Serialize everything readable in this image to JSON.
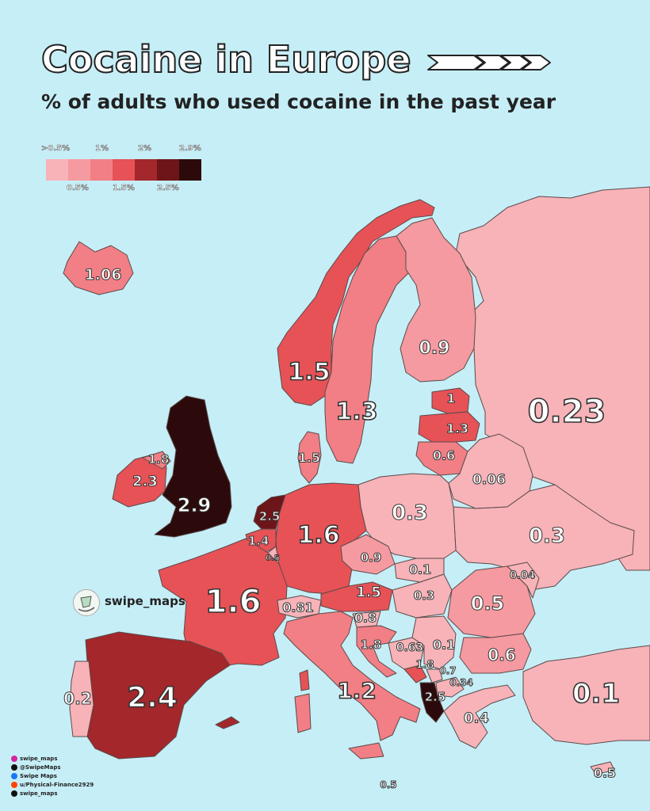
{
  "title": "Cocaine in Europe",
  "subtitle": "% of adults who used cocaine in the past year",
  "legend": {
    "top_labels": [
      ">0.5%",
      "1%",
      "2%",
      "2.9%"
    ],
    "bottom_labels": [
      "0.5%",
      "1.5%",
      "2.5%"
    ],
    "colors": [
      "#f7b3b8",
      "#f59aa0",
      "#f27f85",
      "#e65256",
      "#a3272b",
      "#6e1519",
      "#2c0a0b"
    ]
  },
  "brand": {
    "name": "swipe_maps"
  },
  "socials": [
    {
      "icon": "instagram-icon",
      "label": "swipe_maps",
      "color": "#d6249f"
    },
    {
      "icon": "x-icon",
      "label": "@SwipeMaps",
      "color": "#111111"
    },
    {
      "icon": "facebook-icon",
      "label": "Swipe Maps",
      "color": "#1877f2"
    },
    {
      "icon": "reddit-icon",
      "label": "u/Physical-Finance2929",
      "color": "#ff4500"
    },
    {
      "icon": "threads-icon",
      "label": "swipe_maps",
      "color": "#111111"
    }
  ],
  "countries": [
    {
      "name": "Iceland",
      "value": "1.06"
    },
    {
      "name": "Norway",
      "value": "1.5"
    },
    {
      "name": "Sweden",
      "value": "1.3"
    },
    {
      "name": "Finland",
      "value": "0.9"
    },
    {
      "name": "Estonia",
      "value": "1"
    },
    {
      "name": "Latvia",
      "value": "1.3"
    },
    {
      "name": "Lithuania",
      "value": "0.6"
    },
    {
      "name": "Russia",
      "value": "0.23"
    },
    {
      "name": "Belarus",
      "value": "0.06"
    },
    {
      "name": "Denmark",
      "value": "1.5"
    },
    {
      "name": "Northern Ireland",
      "value": "1.8"
    },
    {
      "name": "Ireland",
      "value": "2.3"
    },
    {
      "name": "United Kingdom",
      "value": "2.9"
    },
    {
      "name": "Netherlands",
      "value": "2.5"
    },
    {
      "name": "Belgium",
      "value": "1.4"
    },
    {
      "name": "Luxembourg",
      "value": "0.5"
    },
    {
      "name": "Germany",
      "value": "1.6"
    },
    {
      "name": "Poland",
      "value": "0.3"
    },
    {
      "name": "Ukraine",
      "value": "0.3"
    },
    {
      "name": "Czechia",
      "value": "0.9"
    },
    {
      "name": "Slovakia",
      "value": "0.1"
    },
    {
      "name": "Moldova",
      "value": "0.04"
    },
    {
      "name": "France",
      "value": "1.6"
    },
    {
      "name": "Switzerland",
      "value": "0.81"
    },
    {
      "name": "Austria",
      "value": "1.5"
    },
    {
      "name": "Hungary",
      "value": "0.3"
    },
    {
      "name": "Romania",
      "value": "0.5"
    },
    {
      "name": "Slovenia",
      "value": "0.8"
    },
    {
      "name": "Croatia",
      "value": "1.8"
    },
    {
      "name": "Bosnia and Herzegovina",
      "value": "0.63"
    },
    {
      "name": "Serbia",
      "value": "0.1"
    },
    {
      "name": "Montenegro",
      "value": "1.8"
    },
    {
      "name": "Kosovo",
      "value": "0.7"
    },
    {
      "name": "North Macedonia",
      "value": "0.34"
    },
    {
      "name": "Albania",
      "value": "2.5"
    },
    {
      "name": "Bulgaria",
      "value": "0.6"
    },
    {
      "name": "Greece",
      "value": "0.4"
    },
    {
      "name": "Turkey",
      "value": "0.1"
    },
    {
      "name": "Cyprus",
      "value": "0.5"
    },
    {
      "name": "Malta",
      "value": "0.5"
    },
    {
      "name": "Italy",
      "value": "1.2"
    },
    {
      "name": "Spain",
      "value": "2.4"
    },
    {
      "name": "Portugal",
      "value": "0.2"
    }
  ]
}
